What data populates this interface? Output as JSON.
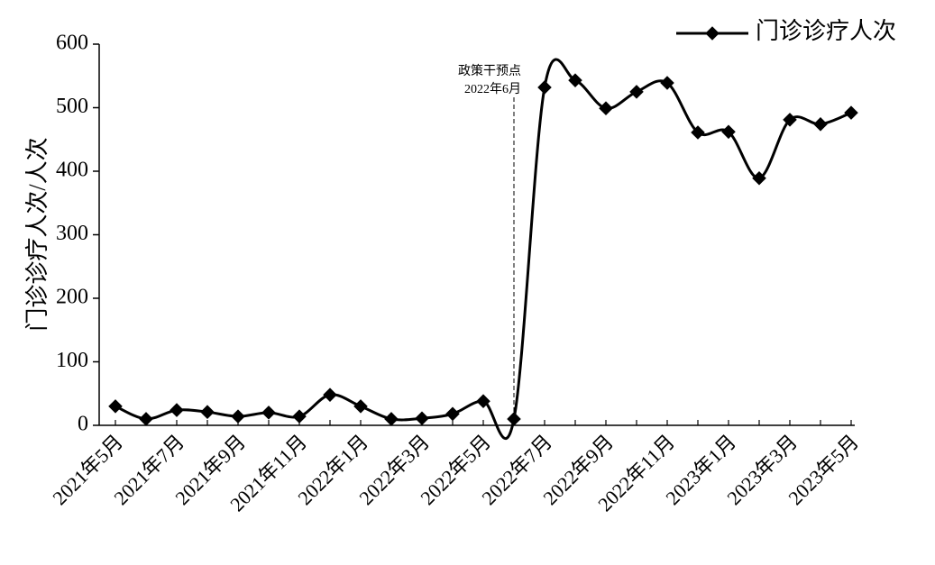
{
  "chart_data": {
    "type": "line",
    "y_label": "门诊诊疗人次/人次",
    "categories": [
      "2021年5月",
      null,
      "2021年7月",
      null,
      "2021年9月",
      null,
      "2021年11月",
      null,
      "2022年1月",
      null,
      "2022年3月",
      null,
      "2022年5月",
      null,
      "2022年7月",
      null,
      "2022年9月",
      null,
      "2022年11月",
      null,
      "2023年1月",
      null,
      "2023年3月",
      null,
      "2023年5月"
    ],
    "series": [
      {
        "name": "门诊诊疗人次",
        "color": "#000000",
        "values": [
          30,
          10,
          24,
          21,
          14,
          20,
          14,
          48,
          30,
          10,
          11,
          18,
          38,
          10,
          532,
          543,
          499,
          525,
          539,
          461,
          462,
          389,
          481,
          474,
          492
        ]
      }
    ],
    "ylim": [
      0,
      600
    ],
    "yticks": [
      0,
      100,
      200,
      300,
      400,
      500,
      600
    ],
    "annotation": [
      "政策干预点",
      "2022年6月"
    ],
    "legend": "top-right",
    "smooth": true,
    "marker": "diamond"
  }
}
